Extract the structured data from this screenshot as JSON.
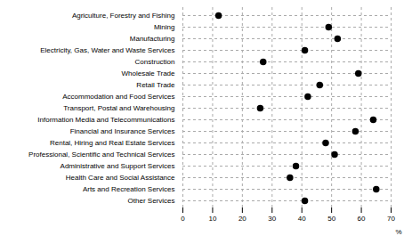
{
  "chart_data": {
    "type": "dot",
    "categories": [
      "Agriculture, Forestry and Fishing",
      "Mining",
      "Manufacturing",
      "Electricity, Gas, Water and Waste Services",
      "Construction",
      "Wholesale Trade",
      "Retail Trade",
      "Accommodation and Food Services",
      "Transport, Postal and Warehousing",
      "Information Media and Telecommunications",
      "Financial and Insurance Services",
      "Rental, Hiring and Real Estate Services",
      "Professional, Scientific and Technical Services",
      "Administrative and Support Services",
      "Health Care and Social Assistance",
      "Arts and Recreation Services",
      "Other Services"
    ],
    "values": [
      12,
      49,
      52,
      41,
      27,
      59,
      46,
      42,
      26,
      64,
      58,
      48,
      51,
      38,
      36,
      65,
      41
    ],
    "xlabel": "%",
    "xlim": [
      0,
      70
    ],
    "xticks": [
      0,
      10,
      20,
      30,
      40,
      50,
      60,
      70
    ],
    "color": "#000000",
    "grid": true
  }
}
